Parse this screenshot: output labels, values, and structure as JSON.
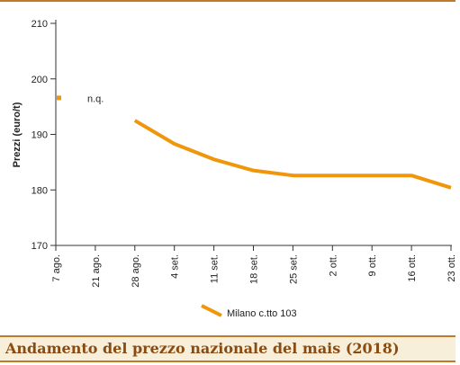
{
  "chart_data": {
    "type": "line",
    "title": "Andamento del prezzo nazionale del mais (2018)",
    "ylabel": "Prezzi (euro/t)",
    "xlabel": "",
    "ylim": [
      170,
      210
    ],
    "yticks": [
      "170",
      "180",
      "190",
      "200",
      "210"
    ],
    "categories": [
      "7 ago.",
      "21 ago.",
      "28 ago.",
      "4 set.",
      "11 set.",
      "18 set.",
      "25 set.",
      "2 ott.",
      "9 ott.",
      "16 ott.",
      "23 ott."
    ],
    "series": [
      {
        "name": "Milano  c.tto 103",
        "color": "#f0960a",
        "values": [
          null,
          null,
          192.5,
          188.3,
          185.5,
          183.5,
          182.6,
          182.6,
          182.6,
          182.6,
          180.4
        ]
      }
    ],
    "annotations": [
      {
        "label": "n.q.",
        "category": "7 ago.",
        "value": 196.5,
        "color": "#f0960a"
      }
    ],
    "grid": false,
    "legend_position": "bottom"
  }
}
